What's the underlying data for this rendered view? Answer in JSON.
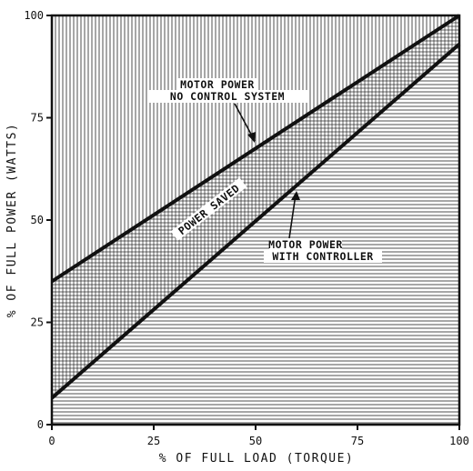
{
  "chart_data": {
    "type": "line",
    "xlabel": "% OF FULL LOAD (TORQUE)",
    "ylabel": "% OF FULL POWER (WATTS)",
    "xlim": [
      0,
      100
    ],
    "ylim": [
      0,
      100
    ],
    "x_ticks": [
      "0",
      "25",
      "50",
      "75",
      "100"
    ],
    "y_ticks": [
      "0",
      "25",
      "50",
      "75",
      "100"
    ],
    "grid": false,
    "series": [
      {
        "name": "MOTOR POWER NO CONTROL SYSTEM",
        "x": [
          0,
          100
        ],
        "y": [
          35,
          100
        ]
      },
      {
        "name": "MOTOR POWER WITH CONTROLLER",
        "x": [
          0,
          100
        ],
        "y": [
          6.5,
          93
        ]
      }
    ],
    "annotations": {
      "no_control_line1": "MOTOR POWER",
      "no_control_line2": "NO CONTROL SYSTEM",
      "controller_line1": "MOTOR POWER",
      "controller_line2": "WITH CONTROLLER",
      "power_saved": "POWER SAVED"
    },
    "colors": {
      "ink": "#111111",
      "background": "#ffffff"
    }
  }
}
